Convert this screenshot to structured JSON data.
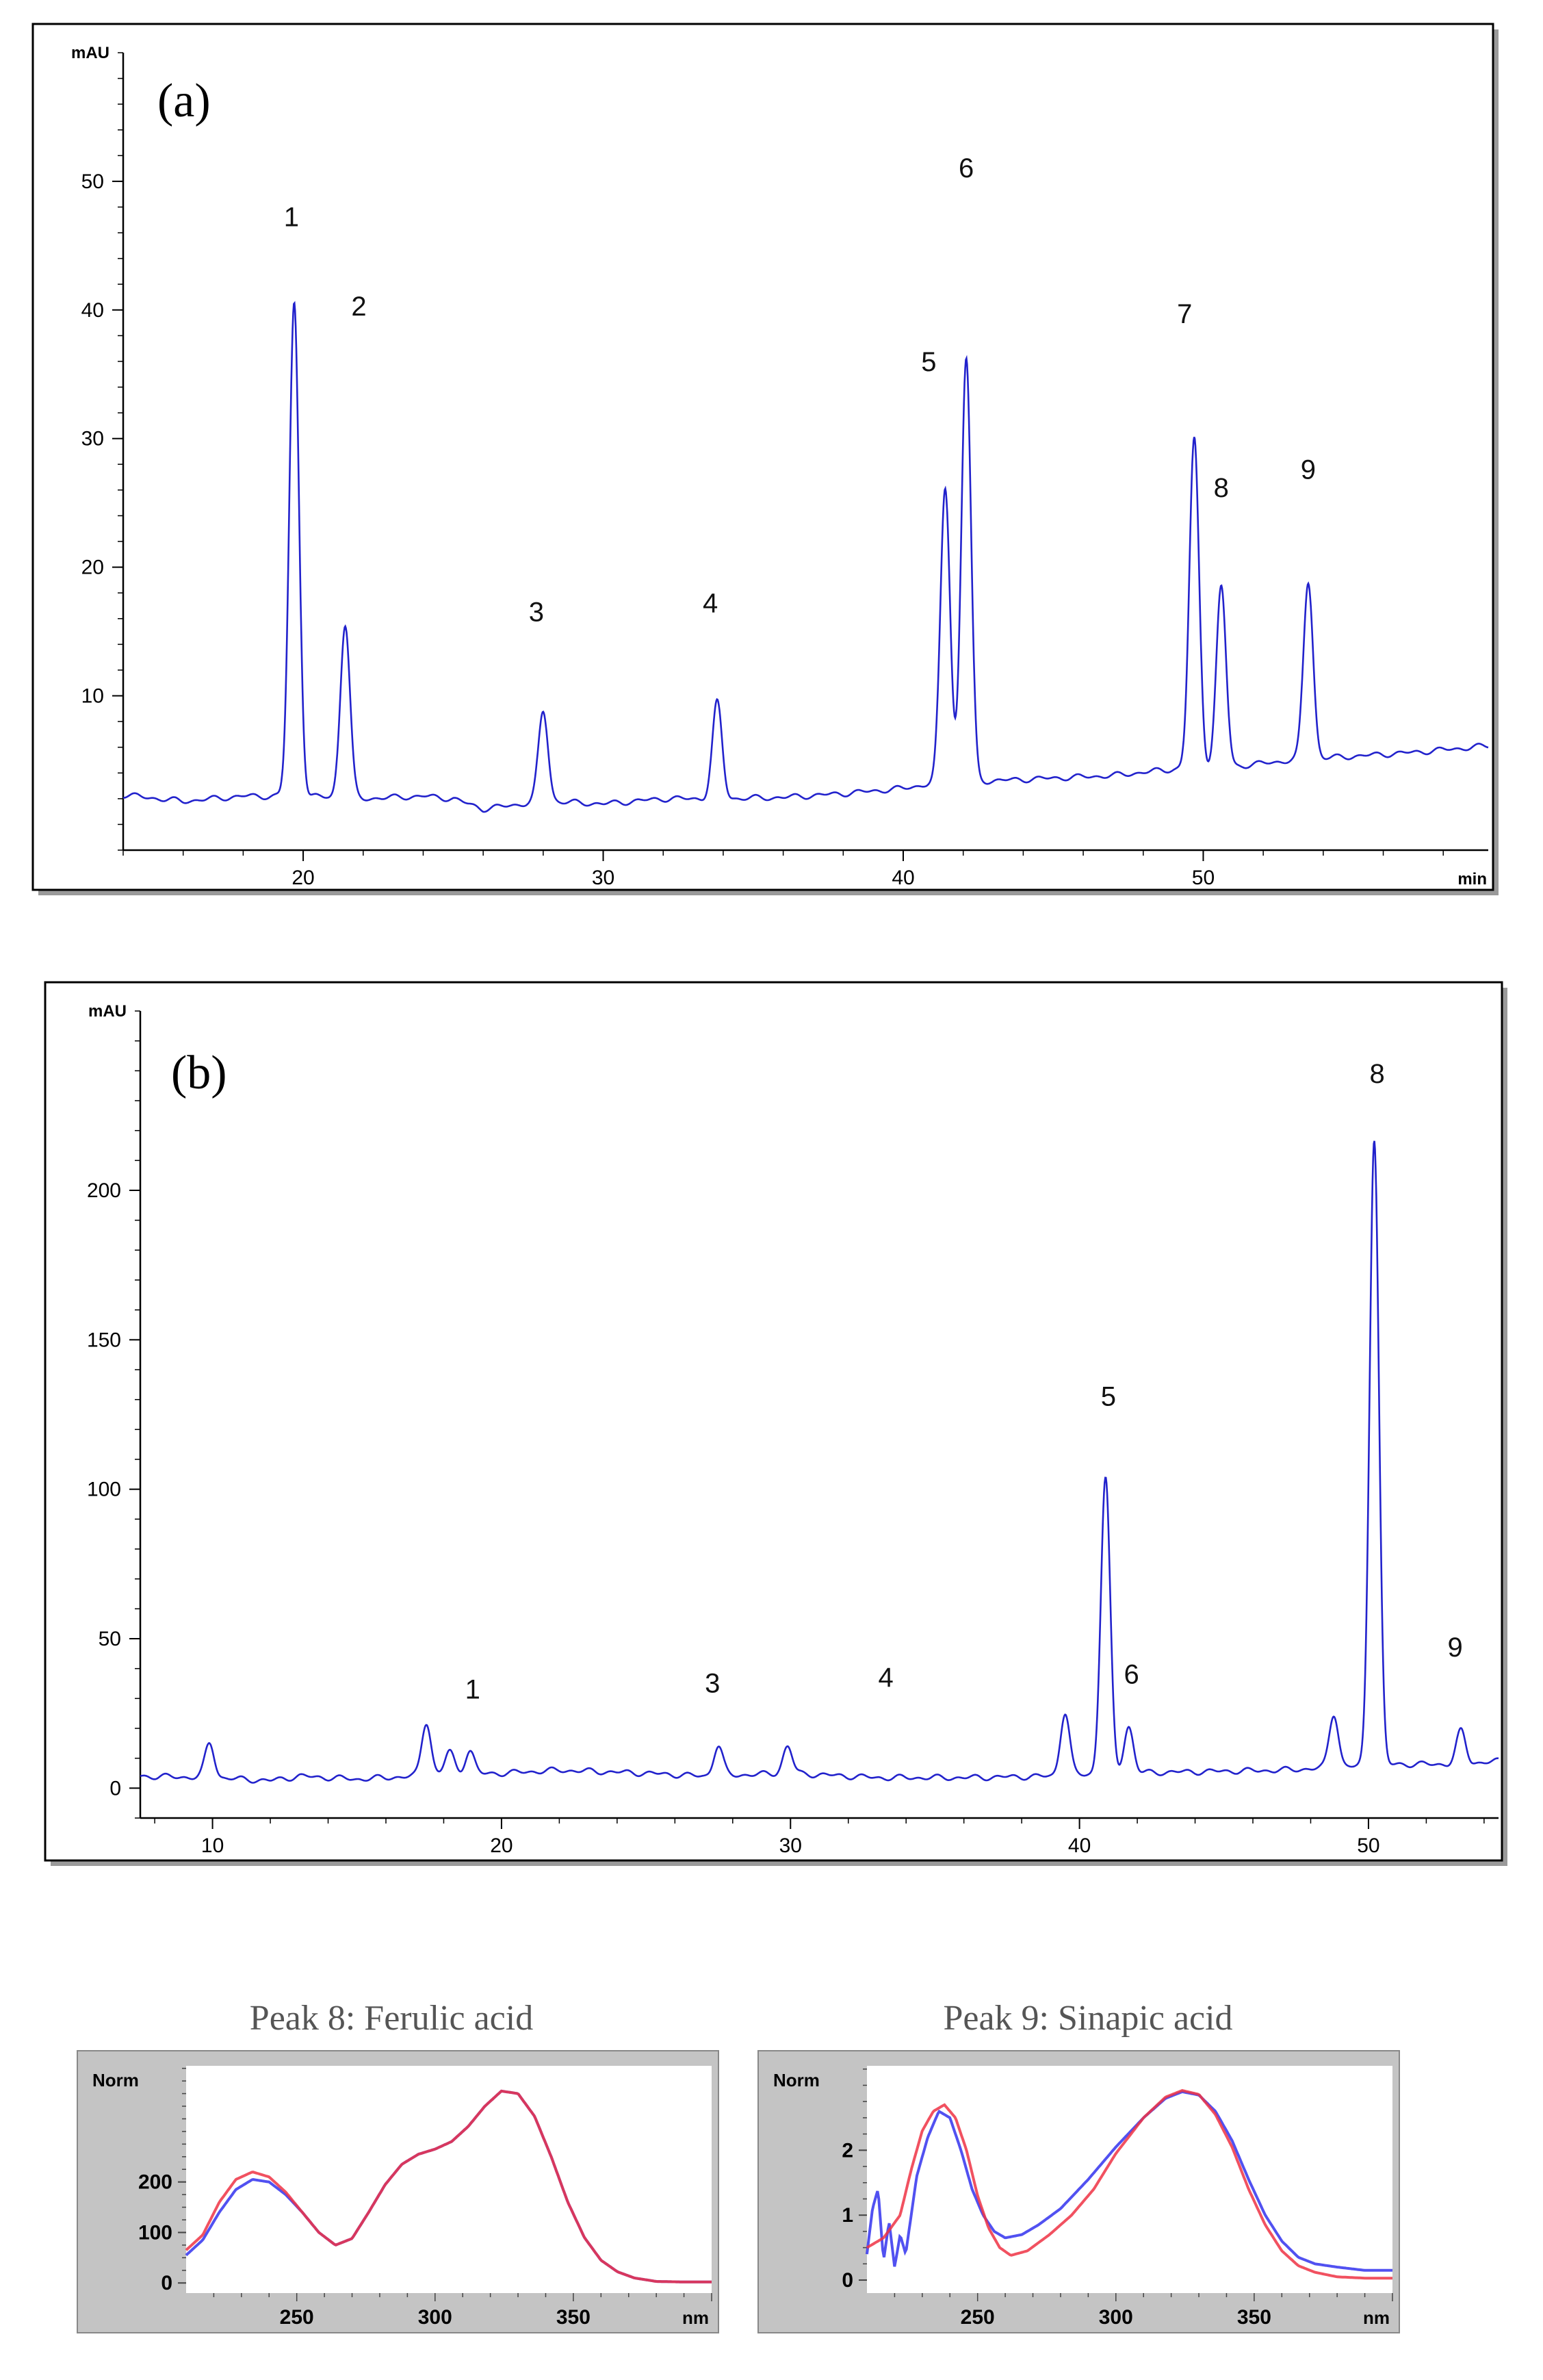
{
  "chart_data": [
    {
      "id": "a",
      "type": "line",
      "panel_label": "(a)",
      "ylabel": "mAU",
      "xlabel": "min",
      "xlim": [
        14,
        59.5
      ],
      "ylim": [
        -2,
        60
      ],
      "xticks": [
        20,
        30,
        40,
        50
      ],
      "yticks": [
        10,
        20,
        30,
        40,
        50
      ],
      "color": "#2222cc",
      "baseline": [
        [
          14,
          2.3
        ],
        [
          16,
          1.8
        ],
        [
          18,
          2.2
        ],
        [
          20,
          2.2
        ],
        [
          22,
          2.0
        ],
        [
          24,
          2.2
        ],
        [
          25,
          2.0
        ],
        [
          26,
          1.2
        ],
        [
          28,
          1.8
        ],
        [
          30,
          1.6
        ],
        [
          32,
          2.0
        ],
        [
          34,
          2.0
        ],
        [
          36,
          2.1
        ],
        [
          38,
          2.4
        ],
        [
          40,
          2.8
        ],
        [
          41,
          3.2
        ],
        [
          43,
          3.4
        ],
        [
          45,
          3.6
        ],
        [
          47,
          3.8
        ],
        [
          49,
          4.3
        ],
        [
          51,
          4.5
        ],
        [
          53,
          5.0
        ],
        [
          55,
          5.3
        ],
        [
          57,
          5.6
        ],
        [
          59.5,
          6.1
        ]
      ],
      "peaks": [
        {
          "label": "1",
          "x": 19.7,
          "height": 38.3
        },
        {
          "label": "2",
          "x": 21.4,
          "height": 13.5
        },
        {
          "label": "3",
          "x": 28.0,
          "height": 7.0
        },
        {
          "label": "4",
          "x": 33.8,
          "height": 7.5
        },
        {
          "label": "5",
          "x": 41.4,
          "height": 23.0
        },
        {
          "label": "6",
          "x": 42.1,
          "height": 33.0
        },
        {
          "label": "7",
          "x": 49.7,
          "height": 25.6
        },
        {
          "label": "8",
          "x": 50.6,
          "height": 14.0
        },
        {
          "label": "9",
          "x": 53.5,
          "height": 13.8
        }
      ]
    },
    {
      "id": "b",
      "type": "line",
      "panel_label": "(b)",
      "ylabel": "mAU",
      "xlabel": "",
      "xlim": [
        7.5,
        54.5
      ],
      "ylim": [
        -10,
        260
      ],
      "xticks": [
        10,
        20,
        30,
        40,
        50
      ],
      "yticks": [
        0,
        50,
        100,
        150,
        200
      ],
      "color": "#2222cc",
      "baseline": [
        [
          7.5,
          4
        ],
        [
          10,
          3.5
        ],
        [
          12,
          2.5
        ],
        [
          13,
          4
        ],
        [
          15,
          3
        ],
        [
          17,
          4
        ],
        [
          20,
          5
        ],
        [
          22,
          6
        ],
        [
          25,
          5
        ],
        [
          27,
          4
        ],
        [
          30,
          5
        ],
        [
          33,
          3.5
        ],
        [
          36,
          3.5
        ],
        [
          39,
          4
        ],
        [
          41,
          5
        ],
        [
          44,
          5.5
        ],
        [
          47,
          6
        ],
        [
          49,
          7
        ],
        [
          51,
          8
        ],
        [
          53,
          8
        ],
        [
          54.5,
          9
        ]
      ],
      "peaks": [
        {
          "label": "",
          "x": 9.9,
          "height": 11.5
        },
        {
          "label": "",
          "x": 17.4,
          "height": 18.0
        },
        {
          "label": "",
          "x": 18.2,
          "height": 8.0
        },
        {
          "label": "",
          "x": 18.9,
          "height": 8.0
        },
        {
          "label": "",
          "x": 27.5,
          "height": 10.0
        },
        {
          "label": "",
          "x": 29.9,
          "height": 9.0
        },
        {
          "label": "",
          "x": 39.5,
          "height": 21.0
        },
        {
          "label": "",
          "x": 40.9,
          "height": 99.0
        },
        {
          "label": "",
          "x": 41.7,
          "height": 15.5
        },
        {
          "label": "",
          "x": 48.8,
          "height": 18.0
        },
        {
          "label": "",
          "x": 50.2,
          "height": 210.0
        },
        {
          "label": "",
          "x": 53.2,
          "height": 11.0
        }
      ],
      "labels": [
        {
          "label": "1",
          "x": 19.0,
          "y": 30
        },
        {
          "label": "3",
          "x": 27.3,
          "y": 32
        },
        {
          "label": "4",
          "x": 33.3,
          "y": 34
        },
        {
          "label": "5",
          "x": 41.0,
          "y": 128
        },
        {
          "label": "6",
          "x": 41.8,
          "y": 35
        },
        {
          "label": "8",
          "x": 50.3,
          "y": 236
        },
        {
          "label": "9",
          "x": 53.0,
          "y": 44
        }
      ]
    },
    {
      "id": "ferulic",
      "type": "line",
      "title": "Peak 8: Ferulic acid",
      "ylabel": "Norm",
      "xlabel": "nm",
      "xlim": [
        210,
        400
      ],
      "ylim": [
        -20,
        430
      ],
      "xticks": [
        250,
        300,
        350
      ],
      "yticks": [
        0,
        100,
        200
      ],
      "series": [
        {
          "color": "#3333ee",
          "points": [
            [
              210,
              55
            ],
            [
              216,
              85
            ],
            [
              222,
              140
            ],
            [
              228,
              185
            ],
            [
              234,
              205
            ],
            [
              240,
              200
            ],
            [
              246,
              175
            ],
            [
              252,
              140
            ],
            [
              258,
              100
            ],
            [
              264,
              75
            ],
            [
              270,
              88
            ],
            [
              276,
              140
            ],
            [
              282,
              195
            ],
            [
              288,
              235
            ],
            [
              294,
              255
            ],
            [
              300,
              265
            ],
            [
              306,
              280
            ],
            [
              312,
              310
            ],
            [
              318,
              350
            ],
            [
              324,
              380
            ],
            [
              330,
              375
            ],
            [
              336,
              330
            ],
            [
              342,
              250
            ],
            [
              348,
              160
            ],
            [
              354,
              90
            ],
            [
              360,
              45
            ],
            [
              366,
              22
            ],
            [
              372,
              10
            ],
            [
              380,
              3
            ],
            [
              390,
              2
            ],
            [
              398,
              2
            ]
          ]
        },
        {
          "color": "#ee3344",
          "points": [
            [
              210,
              65
            ],
            [
              216,
              95
            ],
            [
              222,
              160
            ],
            [
              228,
              205
            ],
            [
              234,
              220
            ],
            [
              240,
              210
            ],
            [
              246,
              180
            ],
            [
              252,
              140
            ],
            [
              258,
              100
            ],
            [
              264,
              75
            ],
            [
              270,
              88
            ],
            [
              276,
              140
            ],
            [
              282,
              195
            ],
            [
              288,
              235
            ],
            [
              294,
              255
            ],
            [
              300,
              265
            ],
            [
              306,
              280
            ],
            [
              312,
              310
            ],
            [
              318,
              350
            ],
            [
              324,
              380
            ],
            [
              330,
              375
            ],
            [
              336,
              330
            ],
            [
              342,
              250
            ],
            [
              348,
              160
            ],
            [
              354,
              90
            ],
            [
              360,
              45
            ],
            [
              366,
              22
            ],
            [
              372,
              10
            ],
            [
              380,
              3
            ],
            [
              390,
              2
            ],
            [
              398,
              2
            ]
          ]
        }
      ]
    },
    {
      "id": "sinapic",
      "type": "line",
      "title": "Peak 9: Sinapic acid",
      "ylabel": "Norm",
      "xlabel": "nm",
      "xlim": [
        210,
        400
      ],
      "ylim": [
        -0.2,
        3.3
      ],
      "xticks": [
        250,
        300,
        350
      ],
      "yticks": [
        0,
        1,
        2
      ],
      "series": [
        {
          "color": "#3333ee",
          "points": [
            [
              210,
              0.4
            ],
            [
              212,
              1.1
            ],
            [
              214,
              1.4
            ],
            [
              216,
              0.3
            ],
            [
              218,
              0.9
            ],
            [
              220,
              0.2
            ],
            [
              222,
              0.7
            ],
            [
              224,
              0.4
            ],
            [
              226,
              1.0
            ],
            [
              228,
              1.6
            ],
            [
              232,
              2.2
            ],
            [
              236,
              2.6
            ],
            [
              240,
              2.5
            ],
            [
              244,
              2.0
            ],
            [
              248,
              1.4
            ],
            [
              252,
              1.0
            ],
            [
              256,
              0.75
            ],
            [
              260,
              0.65
            ],
            [
              266,
              0.7
            ],
            [
              272,
              0.85
            ],
            [
              280,
              1.1
            ],
            [
              290,
              1.55
            ],
            [
              300,
              2.05
            ],
            [
              310,
              2.5
            ],
            [
              318,
              2.8
            ],
            [
              324,
              2.9
            ],
            [
              330,
              2.85
            ],
            [
              336,
              2.6
            ],
            [
              342,
              2.15
            ],
            [
              348,
              1.55
            ],
            [
              354,
              1.0
            ],
            [
              360,
              0.6
            ],
            [
              366,
              0.35
            ],
            [
              372,
              0.25
            ],
            [
              380,
              0.2
            ],
            [
              390,
              0.15
            ],
            [
              398,
              0.15
            ]
          ]
        },
        {
          "color": "#ee3344",
          "points": [
            [
              210,
              0.5
            ],
            [
              216,
              0.65
            ],
            [
              222,
              1.0
            ],
            [
              226,
              1.7
            ],
            [
              230,
              2.3
            ],
            [
              234,
              2.6
            ],
            [
              238,
              2.7
            ],
            [
              242,
              2.5
            ],
            [
              246,
              2.0
            ],
            [
              250,
              1.3
            ],
            [
              254,
              0.8
            ],
            [
              258,
              0.5
            ],
            [
              262,
              0.38
            ],
            [
              268,
              0.45
            ],
            [
              276,
              0.7
            ],
            [
              284,
              1.0
            ],
            [
              292,
              1.4
            ],
            [
              300,
              1.95
            ],
            [
              310,
              2.5
            ],
            [
              318,
              2.82
            ],
            [
              324,
              2.92
            ],
            [
              330,
              2.86
            ],
            [
              336,
              2.55
            ],
            [
              342,
              2.05
            ],
            [
              348,
              1.4
            ],
            [
              354,
              0.85
            ],
            [
              360,
              0.45
            ],
            [
              366,
              0.22
            ],
            [
              372,
              0.12
            ],
            [
              380,
              0.05
            ],
            [
              390,
              0.03
            ],
            [
              398,
              0.03
            ]
          ]
        }
      ]
    }
  ]
}
